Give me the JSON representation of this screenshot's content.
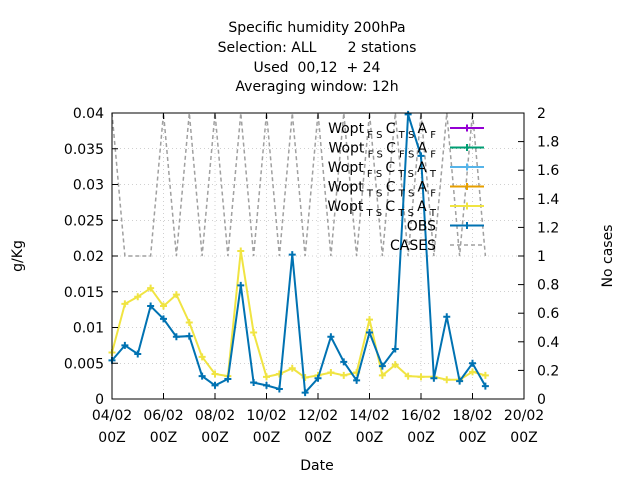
{
  "chart_data": {
    "type": "line",
    "title_lines": [
      "Specific humidity 200hPa",
      "Selection: ALL       2 stations",
      "Used  00,12  + 24",
      "Averaging window: 12h"
    ],
    "xlabel": "Date",
    "ylabel": "g/Kg",
    "y2label": "No cases",
    "xlim": [
      0,
      16
    ],
    "ylim": [
      0,
      0.04
    ],
    "y2lim": [
      0,
      2
    ],
    "x_ticks": [
      {
        "x": 0,
        "line1": "04/02",
        "line2": "00Z"
      },
      {
        "x": 2,
        "line1": "06/02",
        "line2": "00Z"
      },
      {
        "x": 4,
        "line1": "08/02",
        "line2": "00Z"
      },
      {
        "x": 6,
        "line1": "10/02",
        "line2": "00Z"
      },
      {
        "x": 8,
        "line1": "12/02",
        "line2": "00Z"
      },
      {
        "x": 10,
        "line1": "14/02",
        "line2": "00Z"
      },
      {
        "x": 12,
        "line1": "16/02",
        "line2": "00Z"
      },
      {
        "x": 14,
        "line1": "18/02",
        "line2": "00Z"
      },
      {
        "x": 16,
        "line1": "20/02",
        "line2": "00Z"
      }
    ],
    "y_ticks": [
      "0",
      "0.005",
      "0.01",
      "0.015",
      "0.02",
      "0.025",
      "0.03",
      "0.035",
      "0.04"
    ],
    "y2_ticks": [
      "0",
      "0.2",
      "0.4",
      "0.6",
      "0.8",
      "1",
      "1.2",
      "1.4",
      "1.6",
      "1.8",
      "2"
    ],
    "legend_position": "top-right",
    "legend": [
      {
        "base": "Wopt",
        "sub1": "F S",
        "mid": "C",
        "sub2": "T S",
        "end": "A",
        "sub3": "F",
        "color": "#9400d3",
        "marker": "plus"
      },
      {
        "base": "Wopt",
        "sub1": "F S",
        "mid": "C",
        "sub2": "F S",
        "end": "A",
        "sub3": "F",
        "color": "#009e73",
        "marker": "plus"
      },
      {
        "base": "Wopt",
        "sub1": "F S",
        "mid": "C",
        "sub2": "T S",
        "end": "A",
        "sub3": "T",
        "color": "#56b4e9",
        "marker": "plus"
      },
      {
        "base": "Wopt",
        "sub1": "T S",
        "mid": "C",
        "sub2": "T S",
        "end": "A",
        "sub3": "F",
        "color": "#e69f00",
        "marker": "plus"
      },
      {
        "base": "Wopt",
        "sub1": "T S",
        "mid": "C",
        "sub2": "T S",
        "end": "A",
        "sub3": "T",
        "color": "#f0e442",
        "marker": "plus"
      },
      {
        "base": "OBS",
        "color": "#0072b2",
        "marker": "plus"
      },
      {
        "base": "CASES",
        "color": "#a0a0a0",
        "marker": "dash"
      }
    ],
    "series": [
      {
        "legend_index": 4,
        "color": "#f0e442",
        "x": [
          0,
          0.5,
          1,
          1.5,
          2,
          2.5,
          3,
          3.5,
          4,
          4.5,
          5,
          5.5,
          6,
          6.5,
          7,
          7.5,
          8,
          8.5,
          9,
          9.5,
          10,
          10.5,
          11,
          11.5,
          12,
          12.5,
          13,
          13.5,
          14,
          14.5
        ],
        "values": [
          0.0065,
          0.0133,
          0.0143,
          0.0155,
          0.013,
          0.0146,
          0.0107,
          0.0059,
          0.0035,
          0.0032,
          0.0207,
          0.0093,
          0.0031,
          0.0035,
          0.0043,
          0.003,
          0.0033,
          0.0037,
          0.0033,
          0.0037,
          0.0111,
          0.0033,
          0.0048,
          0.0032,
          0.0031,
          0.0031,
          0.0027,
          0.0027,
          0.0038,
          0.0033
        ]
      },
      {
        "legend_index": 5,
        "color": "#0072b2",
        "x": [
          0,
          0.5,
          1,
          1.5,
          2,
          2.5,
          3,
          3.5,
          4,
          4.5,
          5,
          5.5,
          6,
          6.5,
          7,
          7.5,
          8,
          8.5,
          9,
          9.5,
          10,
          10.5,
          11,
          11.5,
          12,
          12.5,
          13,
          13.5,
          14,
          14.5
        ],
        "values": [
          0.0054,
          0.0075,
          0.0063,
          0.013,
          0.0112,
          0.0087,
          0.0088,
          0.0032,
          0.0019,
          0.0028,
          0.0159,
          0.0023,
          0.0019,
          0.0014,
          0.0202,
          0.0009,
          0.0029,
          0.0087,
          0.0052,
          0.0026,
          0.0093,
          0.0046,
          0.007,
          0.0398,
          0.034,
          0.0029,
          0.0115,
          0.0025,
          0.005,
          0.0018
        ]
      }
    ],
    "cases": {
      "color": "#a0a0a0",
      "axis": "y2",
      "x": [
        0,
        0.5,
        1,
        1.5,
        2,
        2.5,
        3,
        3.5,
        4,
        4.5,
        5,
        5.5,
        6,
        6.5,
        7,
        7.5,
        8,
        8.5,
        9,
        9.5,
        10,
        10.5,
        11,
        11.5,
        12,
        12.5,
        13,
        13.5,
        14,
        14.5
      ],
      "values": [
        2,
        1,
        1,
        1,
        2,
        1,
        2,
        1,
        2,
        1,
        2,
        1,
        2,
        1,
        2,
        1,
        2,
        1,
        2,
        1,
        2,
        1,
        2,
        1,
        2,
        1,
        2,
        1,
        2,
        1
      ]
    }
  }
}
